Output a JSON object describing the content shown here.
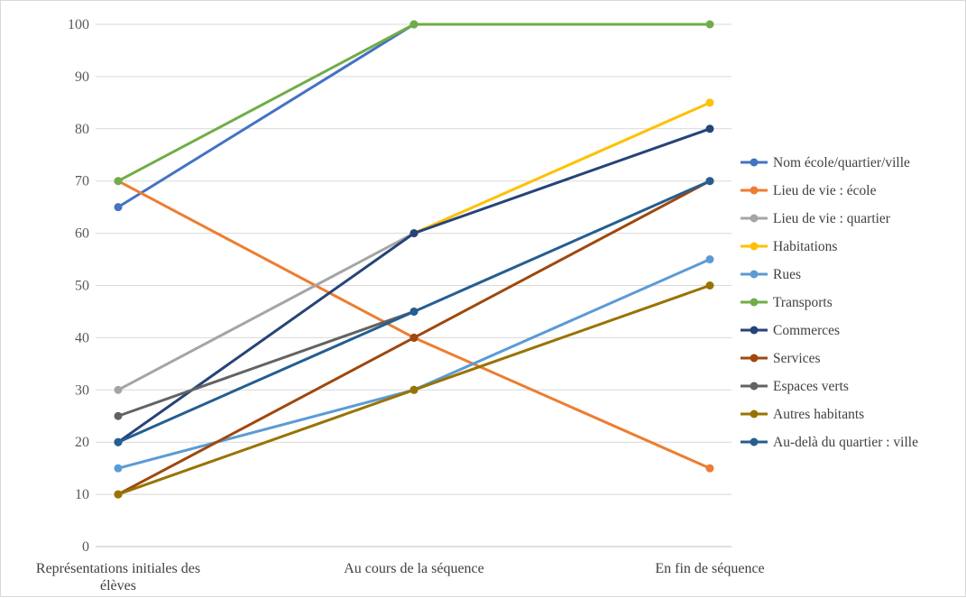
{
  "chart_data": {
    "type": "line",
    "title": "",
    "xlabel": "",
    "ylabel": "",
    "categories": [
      "Représentations initiales des élèves",
      "Au cours de la séquence",
      "En fin de séquence"
    ],
    "category_lines": [
      [
        "Représentations initiales des",
        "élèves"
      ],
      [
        "Au cours de la séquence"
      ],
      [
        "En fin de séquence"
      ]
    ],
    "ylim": [
      0,
      100
    ],
    "yticks": [
      0,
      10,
      20,
      30,
      40,
      50,
      60,
      70,
      80,
      90,
      100
    ],
    "grid": true,
    "legend_position": "right",
    "series": [
      {
        "name": "Nom école/quartier/ville",
        "color": "#4472c4",
        "values": [
          65,
          100,
          null
        ]
      },
      {
        "name": "Lieu de vie : école",
        "color": "#ed7d31",
        "values": [
          70,
          40,
          15
        ]
      },
      {
        "name": "Lieu de vie : quartier",
        "color": "#a5a5a5",
        "values": [
          30,
          60,
          null
        ]
      },
      {
        "name": "Habitations",
        "color": "#ffc000",
        "values": [
          null,
          60,
          85
        ]
      },
      {
        "name": "Rues",
        "color": "#5b9bd5",
        "values": [
          15,
          30,
          55
        ]
      },
      {
        "name": "Transports",
        "color": "#70ad47",
        "values": [
          70,
          100,
          100
        ]
      },
      {
        "name": "Commerces",
        "color": "#264478",
        "values": [
          20,
          60,
          80
        ]
      },
      {
        "name": "Services",
        "color": "#9e480e",
        "values": [
          10,
          40,
          70
        ]
      },
      {
        "name": "Espaces verts",
        "color": "#636363",
        "values": [
          25,
          45,
          null
        ]
      },
      {
        "name": "Autres habitants",
        "color": "#997300",
        "values": [
          10,
          30,
          50
        ]
      },
      {
        "name": "Au-delà du quartier : ville",
        "color": "#255e91",
        "values": [
          20,
          45,
          70
        ]
      }
    ]
  }
}
